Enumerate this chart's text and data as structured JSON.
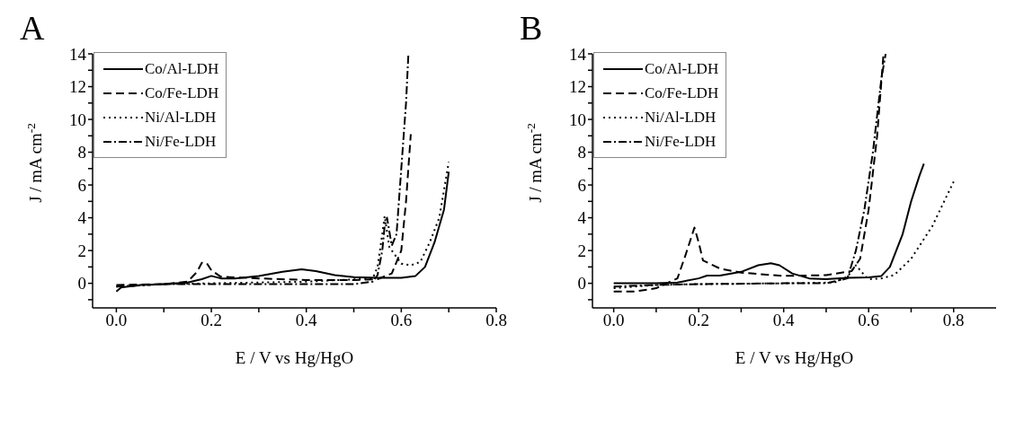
{
  "chart_data": [
    {
      "type": "line",
      "title": "A",
      "xlabel": "E / V vs Hg/HgO",
      "ylabel": "J / mA cm$^{-2}$",
      "xlim": [
        -0.05,
        0.8
      ],
      "ylim": [
        -1.5,
        14
      ],
      "xticks": [
        {
          "value": 0,
          "label": "0.0"
        },
        {
          "value": 0.1,
          "label": null
        },
        {
          "value": 0.2,
          "label": "0.2"
        },
        {
          "value": 0.3,
          "label": null
        },
        {
          "value": 0.4,
          "label": "0.4"
        },
        {
          "value": 0.5,
          "label": null
        },
        {
          "value": 0.6,
          "label": "0.6"
        },
        {
          "value": 0.7,
          "label": null
        },
        {
          "value": 0.8,
          "label": "0.8"
        }
      ],
      "yticks": [
        {
          "value": -1,
          "label": null
        },
        0,
        {
          "value": 1,
          "label": null
        },
        2,
        {
          "value": 3,
          "label": null
        },
        4,
        {
          "value": 5,
          "label": null
        },
        6,
        {
          "value": 7,
          "label": null
        },
        8,
        {
          "value": 9,
          "label": null
        },
        10,
        {
          "value": 11,
          "label": null
        },
        12,
        {
          "value": 13,
          "label": null
        },
        14
      ],
      "legend": "top left",
      "grid": false,
      "marker": "none",
      "series": [
        {
          "name": "Co/Al-LDH",
          "color": "#000000",
          "line_style": "solid",
          "x": [
            0,
            0.01,
            0.05,
            0.1,
            0.15,
            0.18,
            0.2,
            0.22,
            0.25,
            0.3,
            0.35,
            0.39,
            0.42,
            0.46,
            0.5,
            0.55,
            0.6,
            0.63,
            0.65,
            0.67,
            0.69,
            0.7
          ],
          "values": [
            -0.5,
            -0.25,
            -0.1,
            -0.05,
            0.05,
            0.25,
            0.45,
            0.3,
            0.3,
            0.45,
            0.7,
            0.85,
            0.75,
            0.5,
            0.38,
            0.33,
            0.33,
            0.45,
            1,
            2.5,
            4.5,
            6.8
          ]
        },
        {
          "name": "Co/Fe-LDH",
          "color": "#000000",
          "line_style": "dashed",
          "x": [
            0,
            0.1,
            0.15,
            0.17,
            0.18,
            0.19,
            0.2,
            0.22,
            0.3,
            0.4,
            0.5,
            0.55,
            0.58,
            0.6,
            0.61,
            0.62
          ],
          "values": [
            -0.1,
            -0.05,
            0.1,
            0.7,
            1.25,
            1.25,
            0.8,
            0.4,
            0.3,
            0.2,
            0.2,
            0.25,
            0.6,
            2,
            5,
            9.1
          ]
        },
        {
          "name": "Ni/Al-LDH",
          "color": "#000000",
          "line_style": "dotted",
          "x": [
            0,
            0.1,
            0.2,
            0.4,
            0.54,
            0.55,
            0.56,
            0.565,
            0.575,
            0.58,
            0.6,
            0.62,
            0.64,
            0.66,
            0.68,
            0.7
          ],
          "values": [
            -0.2,
            -0.05,
            0,
            0.1,
            0.3,
            1,
            3,
            4.1,
            2.2,
            2,
            1.2,
            1.1,
            1.3,
            2.5,
            4,
            7.4
          ]
        },
        {
          "name": "Ni/Fe-LDH",
          "color": "#000000",
          "line_style": "dashdot",
          "x": [
            0,
            0.1,
            0.2,
            0.4,
            0.5,
            0.54,
            0.55,
            0.56,
            0.565,
            0.57,
            0.58,
            0.59,
            0.6,
            0.61,
            0.615
          ],
          "values": [
            -0.2,
            -0.05,
            -0.05,
            -0.05,
            -0.05,
            0.1,
            0.5,
            2,
            3.5,
            4,
            2.3,
            3,
            7,
            11,
            14
          ]
        }
      ]
    },
    {
      "type": "line",
      "title": "B",
      "xlabel": "E / V vs Hg/HgO",
      "ylabel": "J / mA cm$^{-2}$",
      "xlim": [
        -0.05,
        0.9
      ],
      "ylim": [
        -1.5,
        14
      ],
      "xticks": [
        {
          "value": 0,
          "label": "0.0"
        },
        {
          "value": 0.1,
          "label": null
        },
        {
          "value": 0.2,
          "label": "0.2"
        },
        {
          "value": 0.3,
          "label": null
        },
        {
          "value": 0.4,
          "label": "0.4"
        },
        {
          "value": 0.5,
          "label": null
        },
        {
          "value": 0.6,
          "label": "0.6"
        },
        {
          "value": 0.7,
          "label": null
        },
        {
          "value": 0.8,
          "label": "0.8"
        }
      ],
      "yticks": [
        {
          "value": -1,
          "label": null
        },
        0,
        {
          "value": 1,
          "label": null
        },
        2,
        {
          "value": 3,
          "label": null
        },
        4,
        {
          "value": 5,
          "label": null
        },
        6,
        {
          "value": 7,
          "label": null
        },
        8,
        {
          "value": 9,
          "label": null
        },
        10,
        {
          "value": 11,
          "label": null
        },
        12,
        {
          "value": 13,
          "label": null
        },
        14
      ],
      "legend": "top left",
      "grid": false,
      "marker": "none",
      "series": [
        {
          "name": "Co/Al-LDH",
          "color": "#000000",
          "line_style": "solid",
          "x": [
            0,
            0.1,
            0.15,
            0.2,
            0.22,
            0.25,
            0.3,
            0.34,
            0.37,
            0.39,
            0.42,
            0.46,
            0.5,
            0.55,
            0.6,
            0.63,
            0.65,
            0.68,
            0.7,
            0.72,
            0.73
          ],
          "values": [
            0,
            0,
            0.05,
            0.3,
            0.47,
            0.47,
            0.7,
            1.1,
            1.22,
            1.1,
            0.6,
            0.3,
            0.25,
            0.33,
            0.36,
            0.45,
            1,
            3,
            5,
            6.6,
            7.3
          ]
        },
        {
          "name": "Co/Fe-LDH",
          "color": "#000000",
          "line_style": "dashed",
          "x": [
            0,
            0.05,
            0.1,
            0.15,
            0.17,
            0.19,
            0.2,
            0.21,
            0.25,
            0.3,
            0.4,
            0.5,
            0.56,
            0.58,
            0.6,
            0.62,
            0.635
          ],
          "values": [
            -0.5,
            -0.5,
            -0.3,
            0.3,
            1.8,
            3.4,
            2.5,
            1.4,
            0.9,
            0.65,
            0.45,
            0.5,
            0.75,
            1.5,
            4.5,
            9,
            14
          ]
        },
        {
          "name": "Ni/Al-LDH",
          "color": "#000000",
          "line_style": "dotted",
          "x": [
            0,
            0.1,
            0.2,
            0.4,
            0.52,
            0.55,
            0.57,
            0.59,
            0.6,
            0.63,
            0.66,
            0.7,
            0.75,
            0.8
          ],
          "values": [
            -0.3,
            -0.1,
            -0.05,
            0,
            0.05,
            0.4,
            1.1,
            0.5,
            0.25,
            0.3,
            0.5,
            1.5,
            3.5,
            6.2
          ]
        },
        {
          "name": "Ni/Fe-LDH",
          "color": "#000000",
          "line_style": "dashdot",
          "x": [
            0,
            0.1,
            0.2,
            0.4,
            0.5,
            0.55,
            0.57,
            0.59,
            0.61,
            0.63,
            0.64
          ],
          "values": [
            -0.2,
            -0.1,
            -0.05,
            0,
            0,
            0.3,
            2,
            4.5,
            8,
            12.5,
            14
          ]
        }
      ]
    }
  ]
}
